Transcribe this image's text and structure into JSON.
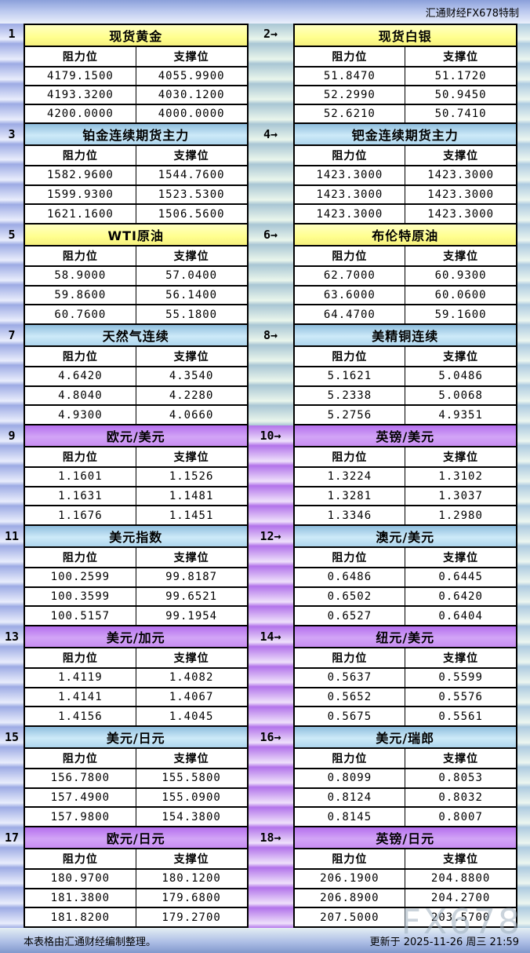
{
  "header": {
    "brand": "汇通财经FX678特制"
  },
  "labels": {
    "resistance": "阻力位",
    "support": "支撑位"
  },
  "colors": {
    "yellow_title": "#ffff8e",
    "blue_title": "#cdeaf8",
    "purple_title": "#c88ef2",
    "stripe_blue": "#9dabe4",
    "stripe_green": "#a9c6d4",
    "stripe_purple": "#b273ea"
  },
  "panels": [
    {
      "label": "1",
      "title": "现货黄金",
      "color": "yellow",
      "gutter": "blue",
      "rows": [
        [
          "4179.1500",
          "4055.9900"
        ],
        [
          "4193.3200",
          "4030.1200"
        ],
        [
          "4200.0000",
          "4000.0000"
        ]
      ]
    },
    {
      "label": "2→",
      "title": "现货白银",
      "color": "yellow",
      "gutter": "green",
      "rows": [
        [
          "51.8470",
          "51.1720"
        ],
        [
          "52.2990",
          "50.9450"
        ],
        [
          "52.6210",
          "50.7410"
        ]
      ]
    },
    {
      "label": "3",
      "title": "铂金连续期货主力",
      "color": "blue",
      "gutter": "blue",
      "rows": [
        [
          "1582.9600",
          "1544.7600"
        ],
        [
          "1599.9300",
          "1523.5300"
        ],
        [
          "1621.1600",
          "1506.5600"
        ]
      ]
    },
    {
      "label": "4→",
      "title": "钯金连续期货主力",
      "color": "blue",
      "gutter": "green",
      "rows": [
        [
          "1423.3000",
          "1423.3000"
        ],
        [
          "1423.3000",
          "1423.3000"
        ],
        [
          "1423.3000",
          "1423.3000"
        ]
      ]
    },
    {
      "label": "5",
      "title": "WTI原油",
      "color": "yellow",
      "gutter": "blue",
      "rows": [
        [
          "58.9000",
          "57.0400"
        ],
        [
          "59.8600",
          "56.1400"
        ],
        [
          "60.7600",
          "55.1800"
        ]
      ]
    },
    {
      "label": "6→",
      "title": "布伦特原油",
      "color": "yellow",
      "gutter": "green",
      "rows": [
        [
          "62.7000",
          "60.9300"
        ],
        [
          "63.6000",
          "60.0600"
        ],
        [
          "64.4700",
          "59.1600"
        ]
      ]
    },
    {
      "label": "7",
      "title": "天然气连续",
      "color": "blue",
      "gutter": "blue",
      "rows": [
        [
          "4.6420",
          "4.3540"
        ],
        [
          "4.8040",
          "4.2280"
        ],
        [
          "4.9300",
          "4.0660"
        ]
      ]
    },
    {
      "label": "8→",
      "title": "美精铜连续",
      "color": "blue",
      "gutter": "green",
      "rows": [
        [
          "5.1621",
          "5.0486"
        ],
        [
          "5.2338",
          "5.0068"
        ],
        [
          "5.2756",
          "4.9351"
        ]
      ]
    },
    {
      "label": "9",
      "title": "欧元/美元",
      "color": "purple",
      "gutter": "blue",
      "rows": [
        [
          "1.1601",
          "1.1526"
        ],
        [
          "1.1631",
          "1.1481"
        ],
        [
          "1.1676",
          "1.1451"
        ]
      ]
    },
    {
      "label": "10→",
      "title": "英镑/美元",
      "color": "purple",
      "gutter": "purple",
      "rows": [
        [
          "1.3224",
          "1.3102"
        ],
        [
          "1.3281",
          "1.3037"
        ],
        [
          "1.3346",
          "1.2980"
        ]
      ]
    },
    {
      "label": "11",
      "title": "美元指数",
      "color": "blue",
      "gutter": "blue",
      "rows": [
        [
          "100.2599",
          "99.8187"
        ],
        [
          "100.3599",
          "99.6521"
        ],
        [
          "100.5157",
          "99.1954"
        ]
      ]
    },
    {
      "label": "12→",
      "title": "澳元/美元",
      "color": "blue",
      "gutter": "purple",
      "rows": [
        [
          "0.6486",
          "0.6445"
        ],
        [
          "0.6502",
          "0.6420"
        ],
        [
          "0.6527",
          "0.6404"
        ]
      ]
    },
    {
      "label": "13",
      "title": "美元/加元",
      "color": "purple",
      "gutter": "blue",
      "rows": [
        [
          "1.4119",
          "1.4082"
        ],
        [
          "1.4141",
          "1.4067"
        ],
        [
          "1.4156",
          "1.4045"
        ]
      ]
    },
    {
      "label": "14→",
      "title": "纽元/美元",
      "color": "purple",
      "gutter": "purple",
      "rows": [
        [
          "0.5637",
          "0.5599"
        ],
        [
          "0.5652",
          "0.5576"
        ],
        [
          "0.5675",
          "0.5561"
        ]
      ]
    },
    {
      "label": "15",
      "title": "美元/日元",
      "color": "blue",
      "gutter": "blue",
      "rows": [
        [
          "156.7800",
          "155.5800"
        ],
        [
          "157.4900",
          "155.0900"
        ],
        [
          "157.9800",
          "154.3800"
        ]
      ]
    },
    {
      "label": "16→",
      "title": "美元/瑞郎",
      "color": "blue",
      "gutter": "purple",
      "rows": [
        [
          "0.8099",
          "0.8053"
        ],
        [
          "0.8124",
          "0.8032"
        ],
        [
          "0.8145",
          "0.8007"
        ]
      ]
    },
    {
      "label": "17",
      "title": "欧元/日元",
      "color": "purple",
      "gutter": "blue",
      "rows": [
        [
          "180.9700",
          "180.1200"
        ],
        [
          "181.3800",
          "179.6800"
        ],
        [
          "181.8200",
          "179.2700"
        ]
      ]
    },
    {
      "label": "18→",
      "title": "英镑/日元",
      "color": "purple",
      "gutter": "purple",
      "rows": [
        [
          "206.1900",
          "204.8800"
        ],
        [
          "206.8900",
          "204.2700"
        ],
        [
          "207.5000",
          "203.5700"
        ]
      ]
    }
  ],
  "footer": {
    "note": "本表格由汇通财经编制整理。",
    "updated": "更新于 2025-11-26 周三 21:59",
    "watermark": "FX678"
  }
}
